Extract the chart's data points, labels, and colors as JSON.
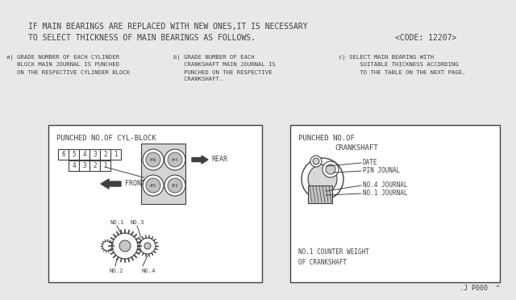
{
  "bg_color": "#e8e8e8",
  "line_color": "#404040",
  "title_line1": "IF MAIN BEARINGS ARE REPLACED WITH NEW ONES,IT IS NECESSARY",
  "title_line2": "TO SELECT THICKNESS OF MAIN BEARINGS AS FOLLOWS.",
  "title_code": "<CODE: 12207>",
  "note_a": "a) GRADE NUMBER OF EACH CYLINDER\n   BLOCK MAIN JOURNAL IS PUNCHED\n   ON THE RESPECTIVE CYLINDER BLOCK",
  "note_b": "b) GRADE NUMBER OF EACH\n   CRANKSHAFT MAIN JOURNAL IS\n   PUNCHED ON THE RESPECTIVE\n   CRANKSHAFT.",
  "note_c": "c) SELECT MAIN BEARING WITH\n      SUITABLE THICKNESS ACCORDING\n      TO THE TABLE ON THE NEXT PAGE.",
  "box1_title": "PUNCHED NO.OF CYL-BLOCK",
  "box2_title_1": "PUNCHED NO.OF",
  "box2_title_2": "CRANKSHAFT",
  "footer": ".J P000  ^",
  "num_row1": [
    6,
    5,
    4,
    3,
    2,
    1
  ],
  "num_row2": [
    4,
    3,
    2,
    1
  ],
  "cyl_labels_top": [
    "#6",
    "#4"
  ],
  "cyl_labels_bot": [
    "#5",
    "#3"
  ],
  "cs_labels": [
    "DATE",
    "PIN JOUNAL",
    "NO.4 JOURNAL",
    "NO.1 JOURNAL"
  ],
  "cw_label": "NO.1 COUNTER WEIGHT\nOF CRANKSHAFT"
}
